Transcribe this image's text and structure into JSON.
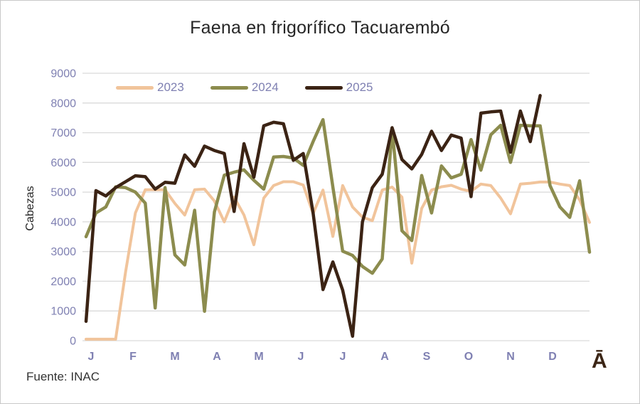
{
  "title": "Faena en frigorífico Tacuarembó",
  "source": "Fuente: INAC",
  "axis_annotation": "Ā",
  "colors": {
    "title_text": "#262626",
    "axis_label_text": "#7f80b2",
    "gridline": "#d9d9d9",
    "source_text": "#333333",
    "annotation_text": "#3b2515"
  },
  "chart_data": {
    "type": "line",
    "title": "Faena en frigorífico Tacuarembó",
    "xlabel": "",
    "ylabel": "Cabezas",
    "ylim": [
      0,
      9000
    ],
    "ytick_step": 1000,
    "grid": "horizontal",
    "legend_position": "top-inside",
    "x_unit": "week-of-year",
    "x_months": [
      "J",
      "F",
      "M",
      "A",
      "M",
      "J",
      "J",
      "A",
      "S",
      "O",
      "N",
      "D"
    ],
    "series": [
      {
        "name": "2023",
        "color": "#f1c49b",
        "width": 4,
        "values": [
          50,
          50,
          50,
          50,
          2300,
          4300,
          5080,
          5080,
          5080,
          4620,
          4230,
          5080,
          5100,
          4700,
          4000,
          4830,
          4230,
          3230,
          4800,
          5220,
          5350,
          5350,
          5240,
          4280,
          5070,
          3510,
          5220,
          4500,
          4160,
          4040,
          5070,
          5170,
          4830,
          2610,
          4450,
          5070,
          5180,
          5230,
          5100,
          5030,
          5270,
          5220,
          4800,
          4270,
          5270,
          5300,
          5340,
          5340,
          5270,
          5220,
          4740,
          3980
        ]
      },
      {
        "name": "2024",
        "color": "#8c8c4e",
        "width": 4.5,
        "values": [
          3500,
          4300,
          4500,
          5180,
          5150,
          5000,
          4630,
          1100,
          5150,
          2890,
          2550,
          4390,
          990,
          4330,
          5570,
          5670,
          5750,
          5400,
          5100,
          6180,
          6200,
          6150,
          5900,
          6700,
          7440,
          5170,
          3010,
          2870,
          2500,
          2270,
          2750,
          7120,
          3700,
          3370,
          5560,
          4300,
          5880,
          5480,
          5600,
          6770,
          5740,
          6930,
          7250,
          6000,
          7250,
          7230,
          7230,
          5220,
          4500,
          4150,
          5380,
          2980
        ]
      },
      {
        "name": "2025",
        "color": "#3b2314",
        "width": 4.5,
        "values": [
          650,
          5050,
          4870,
          5150,
          5350,
          5550,
          5520,
          5100,
          5330,
          5300,
          6250,
          5870,
          6550,
          6400,
          6300,
          4350,
          6630,
          5500,
          7230,
          7350,
          7300,
          6070,
          6300,
          4300,
          1720,
          2650,
          1700,
          150,
          4000,
          5150,
          5600,
          7170,
          6100,
          5780,
          6270,
          7050,
          6400,
          6920,
          6820,
          4850,
          7660,
          7700,
          7730,
          6340,
          7730,
          6700,
          8250
        ]
      }
    ]
  }
}
